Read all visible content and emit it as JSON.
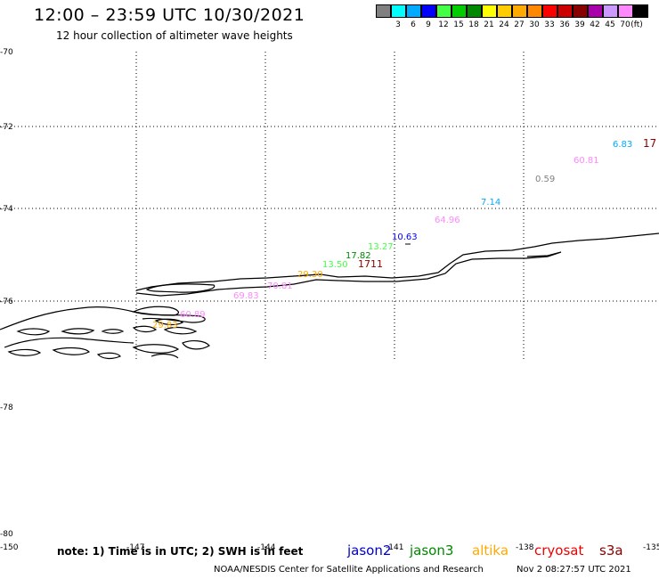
{
  "header": {
    "title": "12:00 – 23:59 UTC 10/30/2021",
    "subtitle": "12 hour collection of altimeter wave heights"
  },
  "legend": {
    "unit": "(ft)",
    "colors": [
      "#808080",
      "#00ffff",
      "#00aaff",
      "#0000ff",
      "#44ff44",
      "#00cc00",
      "#008800",
      "#ffff00",
      "#ffcc00",
      "#ffaa00",
      "#ff8800",
      "#ff0000",
      "#cc0000",
      "#880000",
      "#aa00aa",
      "#cc99ff",
      "#ff88ff",
      "#000000"
    ],
    "labels": [
      "3",
      "6",
      "9",
      "12",
      "15",
      "18",
      "21",
      "24",
      "27",
      "30",
      "33",
      "36",
      "39",
      "42",
      "45",
      "70"
    ]
  },
  "axes": {
    "lat_labels": [
      "-70",
      "-72",
      "-74",
      "-76",
      "-78",
      "-80"
    ],
    "lon_labels": [
      "-150",
      "-147",
      "-144",
      "-141",
      "-138",
      "-135"
    ]
  },
  "observations": [
    {
      "text": "17",
      "color": "#880000"
    },
    {
      "text": "6.83",
      "color": "#00aaff"
    },
    {
      "text": "60.81",
      "color": "#ff88ff"
    },
    {
      "text": "0.59",
      "color": "#808080"
    },
    {
      "text": "7.14",
      "color": "#00aaff"
    },
    {
      "text": "64.96",
      "color": "#ff88ff"
    },
    {
      "text": "10.63",
      "color": "#0000ff"
    },
    {
      "text": "13.27",
      "color": "#44ff44"
    },
    {
      "text": "17.82",
      "color": "#008800"
    },
    {
      "text": "13.50",
      "color": "#44ff44"
    },
    {
      "text": "1711",
      "color": "#880000"
    },
    {
      "text": "29.30",
      "color": "#ffaa00"
    },
    {
      "text": "70.81",
      "color": "#ff88ff"
    },
    {
      "text": "69.83",
      "color": "#ff88ff"
    },
    {
      "text": "60.89",
      "color": "#ff88ff"
    },
    {
      "text": "29.83",
      "color": "#ffaa00"
    }
  ],
  "footer": {
    "note": "note: 1) Time is in UTC; 2) SWH is in feet",
    "satellites": [
      {
        "name": "jason2",
        "color": "#0000cc"
      },
      {
        "name": "jason3",
        "color": "#008800"
      },
      {
        "name": "altika",
        "color": "#ffaa00"
      },
      {
        "name": "cryosat",
        "color": "#ee0000"
      },
      {
        "name": "s3a",
        "color": "#880000"
      }
    ],
    "credit": "NOAA/NESDIS Center for Satellite Applications and Research",
    "timestamp": "Nov  2 08:27:57 UTC 2021"
  }
}
